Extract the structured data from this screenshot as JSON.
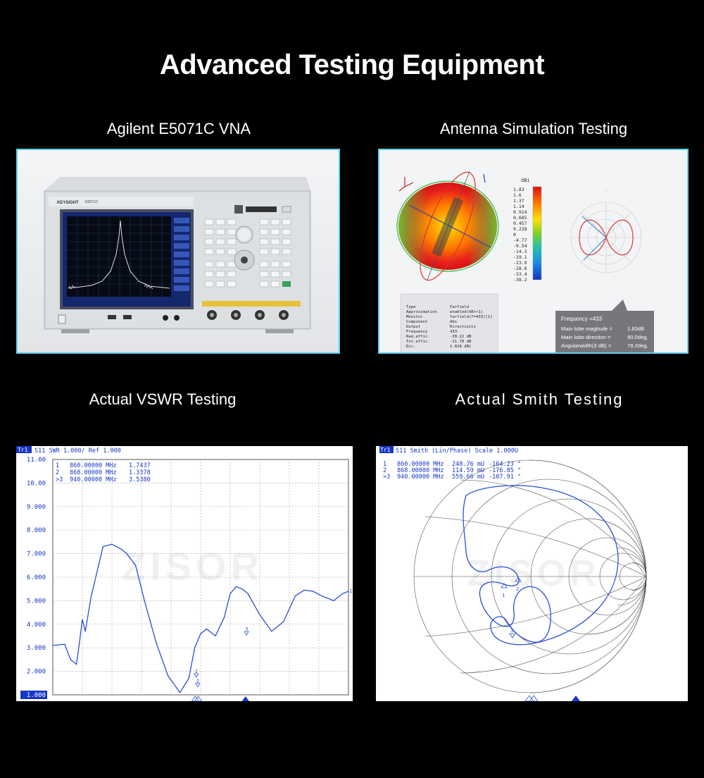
{
  "title": "Advanced Testing Equipment",
  "panels": {
    "vna": {
      "caption": "Agilent E5071C VNA",
      "brand": "KEYSIGHT",
      "model": "E5071C"
    },
    "antenna": {
      "caption": "Antenna Simulation Testing",
      "colorbar_unit": "dBi",
      "colorbar_ticks": [
        "1.83",
        "1.6",
        "1.37",
        "1.14",
        "0.914",
        "0.685",
        "0.457",
        "0.228",
        "0",
        "-4.77",
        "-9.54",
        "-14.3",
        "-19.1",
        "-23.9",
        "-28.6",
        "-33.4",
        "-38.2"
      ],
      "table_labels": [
        "Type",
        "Approximation",
        "Monitor",
        "Component",
        "Output",
        "Frequency",
        "Rad.effic.",
        "Tot.effic.",
        "Dir."
      ],
      "table_values": [
        "Farfield",
        "enabled(kR>>1)",
        "farfield(f=433)[1]",
        "Abs",
        "Directivity",
        "433",
        "-30.22 dB",
        "-21.78 dB",
        "1.828 dBi"
      ],
      "callout_freq": "Frequency =433",
      "callout_rows": [
        {
          "label": "Main lobe magitude =",
          "value": "1.83dB"
        },
        {
          "label": "Main lobe direction =",
          "value": "90.0deg."
        },
        {
          "label": "Angularwidth(3 dB) =",
          "value": "78.2deg."
        }
      ]
    },
    "vswr": {
      "caption": "Actual VSWR Testing",
      "header": "S11  SWR 1.000/ Ref 1.000",
      "tr_label": "Tr1",
      "markers": [
        {
          "id": "1",
          "freq": "860.00000 MHz",
          "value": "1.7437"
        },
        {
          "id": "2",
          "freq": "868.00000 MHz",
          "value": "1.3378"
        },
        {
          "id": ">3",
          "freq": "940.00000 MHz",
          "value": "3.5380"
        }
      ],
      "watermark": "ZISOR"
    },
    "smith": {
      "caption": "Actual Smith Testing",
      "header": "S11  Smith (Lin/Phase) Scale 1.000U",
      "tr_label": "Tr1",
      "markers": [
        {
          "id": "1",
          "freq": "860.00000 MHz",
          "mag": "248.76 mU",
          "phase": "-164.23 °"
        },
        {
          "id": "2",
          "freq": "868.00000 MHz",
          "mag": "114.59 mU",
          "phase": "-176.85 °"
        },
        {
          "id": ">3",
          "freq": "940.00000 MHz",
          "mag": "559.66 mU",
          "phase": "-107.91 °"
        }
      ],
      "watermark": "ZISOR"
    }
  },
  "chart_data": {
    "type": "line",
    "title": "S11  SWR 1.000/ Ref 1.000",
    "xlabel": "",
    "ylabel": "",
    "ylim": [
      1.0,
      11.0
    ],
    "yticks": [
      "11.00",
      "10.00",
      "9.000",
      "8.000",
      "7.000",
      "6.000",
      "5.000",
      "4.000",
      "3.000",
      "2.000",
      "1.000"
    ],
    "grid": true,
    "series": [
      {
        "color": "#2a4fd6",
        "x": [
          0,
          0.04,
          0.06,
          0.08,
          0.09,
          0.1,
          0.11,
          0.13,
          0.17,
          0.2,
          0.23,
          0.25,
          0.28,
          0.31,
          0.35,
          0.39,
          0.43,
          0.46,
          0.48,
          0.5,
          0.52,
          0.55,
          0.58,
          0.6,
          0.62,
          0.64,
          0.66,
          0.7,
          0.74,
          0.78,
          0.82,
          0.85,
          0.88,
          0.91,
          0.95,
          0.98,
          1.0
        ],
        "y": [
          3.1,
          3.15,
          2.5,
          2.3,
          3.2,
          4.2,
          3.7,
          5.2,
          7.3,
          7.4,
          7.2,
          7.0,
          6.5,
          5.0,
          3.2,
          1.8,
          1.1,
          1.7,
          3.0,
          3.6,
          3.8,
          3.5,
          4.3,
          5.3,
          5.6,
          5.5,
          5.3,
          4.4,
          3.7,
          4.1,
          5.2,
          5.45,
          5.4,
          5.2,
          5.0,
          5.3,
          5.4
        ]
      }
    ],
    "markers": [
      {
        "id": "1",
        "y": 1.7437
      },
      {
        "id": "2",
        "y": 1.3378
      },
      {
        "id": "3",
        "y": 3.538
      }
    ]
  }
}
